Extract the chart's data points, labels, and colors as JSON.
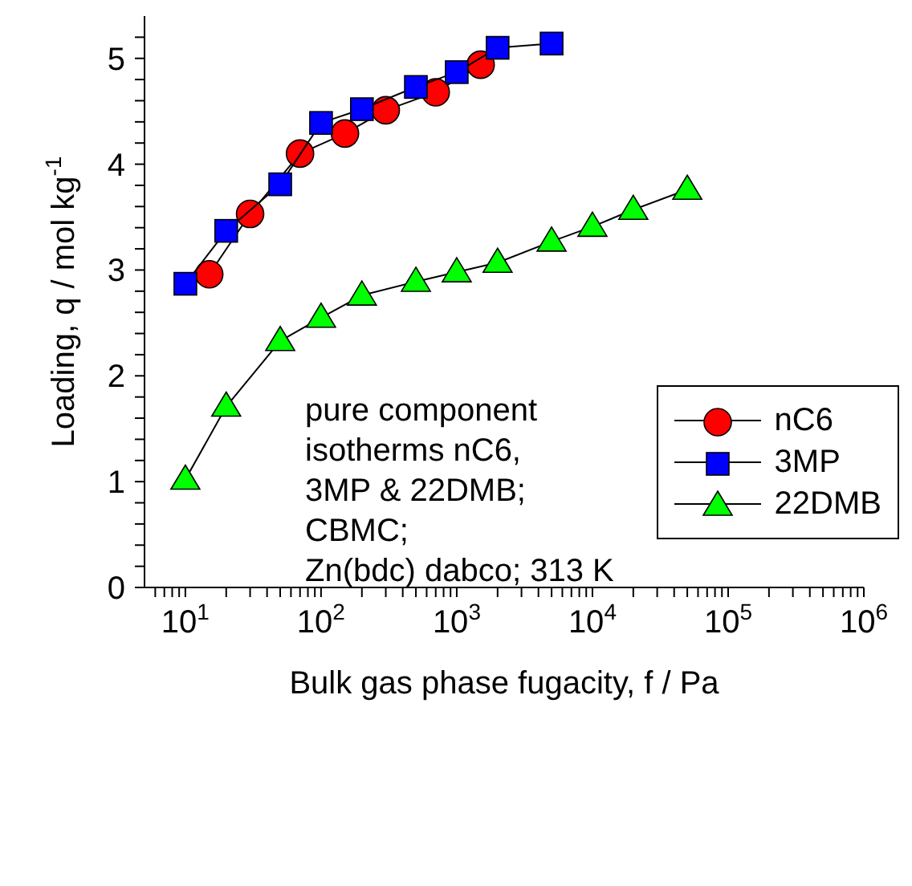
{
  "chart_data": {
    "type": "line",
    "xlabel": "Bulk gas phase fugacity, f / Pa",
    "ylabel": "Loading, q / mol kg$^{-1}$",
    "log": "x",
    "legend": "right",
    "xlim": [
      5,
      1000000
    ],
    "ylim": [
      0,
      5.4
    ],
    "xticks": [
      {
        "value": 6,
        "label": null
      },
      {
        "value": 7,
        "label": null
      },
      {
        "value": 8,
        "label": null
      },
      {
        "value": 9,
        "label": null
      },
      {
        "value": 10,
        "label": "10$^{1}$"
      },
      {
        "value": 20,
        "label": null
      },
      {
        "value": 30,
        "label": null
      },
      {
        "value": 40,
        "label": null
      },
      {
        "value": 50,
        "label": null
      },
      {
        "value": 60,
        "label": null
      },
      {
        "value": 70,
        "label": null
      },
      {
        "value": 80,
        "label": null
      },
      {
        "value": 90,
        "label": null
      },
      {
        "value": 100,
        "label": "10$^{2}$"
      },
      {
        "value": 200,
        "label": null
      },
      {
        "value": 300,
        "label": null
      },
      {
        "value": 400,
        "label": null
      },
      {
        "value": 500,
        "label": null
      },
      {
        "value": 600,
        "label": null
      },
      {
        "value": 700,
        "label": null
      },
      {
        "value": 800,
        "label": null
      },
      {
        "value": 900,
        "label": null
      },
      {
        "value": 1000,
        "label": "10$^{3}$"
      },
      {
        "value": 2000,
        "label": null
      },
      {
        "value": 3000,
        "label": null
      },
      {
        "value": 4000,
        "label": null
      },
      {
        "value": 5000,
        "label": null
      },
      {
        "value": 6000,
        "label": null
      },
      {
        "value": 7000,
        "label": null
      },
      {
        "value": 8000,
        "label": null
      },
      {
        "value": 9000,
        "label": null
      },
      {
        "value": 10000,
        "label": "10$^{4}$"
      },
      {
        "value": 20000,
        "label": null
      },
      {
        "value": 30000,
        "label": null
      },
      {
        "value": 40000,
        "label": null
      },
      {
        "value": 50000,
        "label": null
      },
      {
        "value": 60000,
        "label": null
      },
      {
        "value": 70000,
        "label": null
      },
      {
        "value": 80000,
        "label": null
      },
      {
        "value": 90000,
        "label": null
      },
      {
        "value": 100000,
        "label": "10$^{5}$"
      },
      {
        "value": 200000,
        "label": null
      },
      {
        "value": 300000,
        "label": null
      },
      {
        "value": 400000,
        "label": null
      },
      {
        "value": 500000,
        "label": null
      },
      {
        "value": 600000,
        "label": null
      },
      {
        "value": 700000,
        "label": null
      },
      {
        "value": 800000,
        "label": null
      },
      {
        "value": 900000,
        "label": null
      },
      {
        "value": 1000000,
        "label": "10$^{6}$"
      }
    ],
    "yticks": [
      0,
      {
        "value": 0.2,
        "label": null
      },
      {
        "value": 0.4,
        "label": null
      },
      {
        "value": 0.6,
        "label": null
      },
      {
        "value": 0.8,
        "label": null
      },
      1,
      {
        "value": 1.2,
        "label": null
      },
      {
        "value": 1.4,
        "label": null
      },
      {
        "value": 1.6,
        "label": null
      },
      {
        "value": 1.8,
        "label": null
      },
      2,
      {
        "value": 2.2,
        "label": null
      },
      {
        "value": 2.4,
        "label": null
      },
      {
        "value": 2.6,
        "label": null
      },
      {
        "value": 2.8,
        "label": null
      },
      3,
      {
        "value": 3.2,
        "label": null
      },
      {
        "value": 3.4,
        "label": null
      },
      {
        "value": 3.6,
        "label": null
      },
      {
        "value": 3.8,
        "label": null
      },
      4,
      {
        "value": 4.2,
        "label": null
      },
      {
        "value": 4.4,
        "label": null
      },
      {
        "value": 4.6,
        "label": null
      },
      {
        "value": 4.8,
        "label": null
      },
      5,
      {
        "value": 5.2,
        "label": null
      }
    ],
    "series": [
      {
        "name": "nC6",
        "color": "#ff0000",
        "marker": "circle",
        "x": [
          15,
          30,
          70,
          150,
          300,
          700,
          1500
        ],
        "values": [
          2.96,
          3.53,
          4.1,
          4.29,
          4.51,
          4.68,
          4.94
        ]
      },
      {
        "name": "3MP",
        "color": "#0000ff",
        "marker": "square",
        "x": [
          10,
          20,
          50,
          100,
          200,
          500,
          1000,
          2000,
          5000
        ],
        "values": [
          2.87,
          3.37,
          3.81,
          4.39,
          4.52,
          4.73,
          4.87,
          5.1,
          5.14
        ]
      },
      {
        "name": "22DMB",
        "color": "#00ff00",
        "marker": "triangle",
        "x": [
          10,
          20,
          50,
          100,
          200,
          500,
          1000,
          2000,
          5000,
          10000,
          20000,
          50000
        ],
        "values": [
          1.02,
          1.71,
          2.33,
          2.55,
          2.76,
          2.89,
          2.98,
          3.07,
          3.27,
          3.41,
          3.57,
          3.76
        ]
      }
    ],
    "annotations": [
      "pure component\nisotherms nC6,\n3MP & 22DMB;\nCBMC;\nZn(bdc) dabco; 313 K"
    ]
  }
}
